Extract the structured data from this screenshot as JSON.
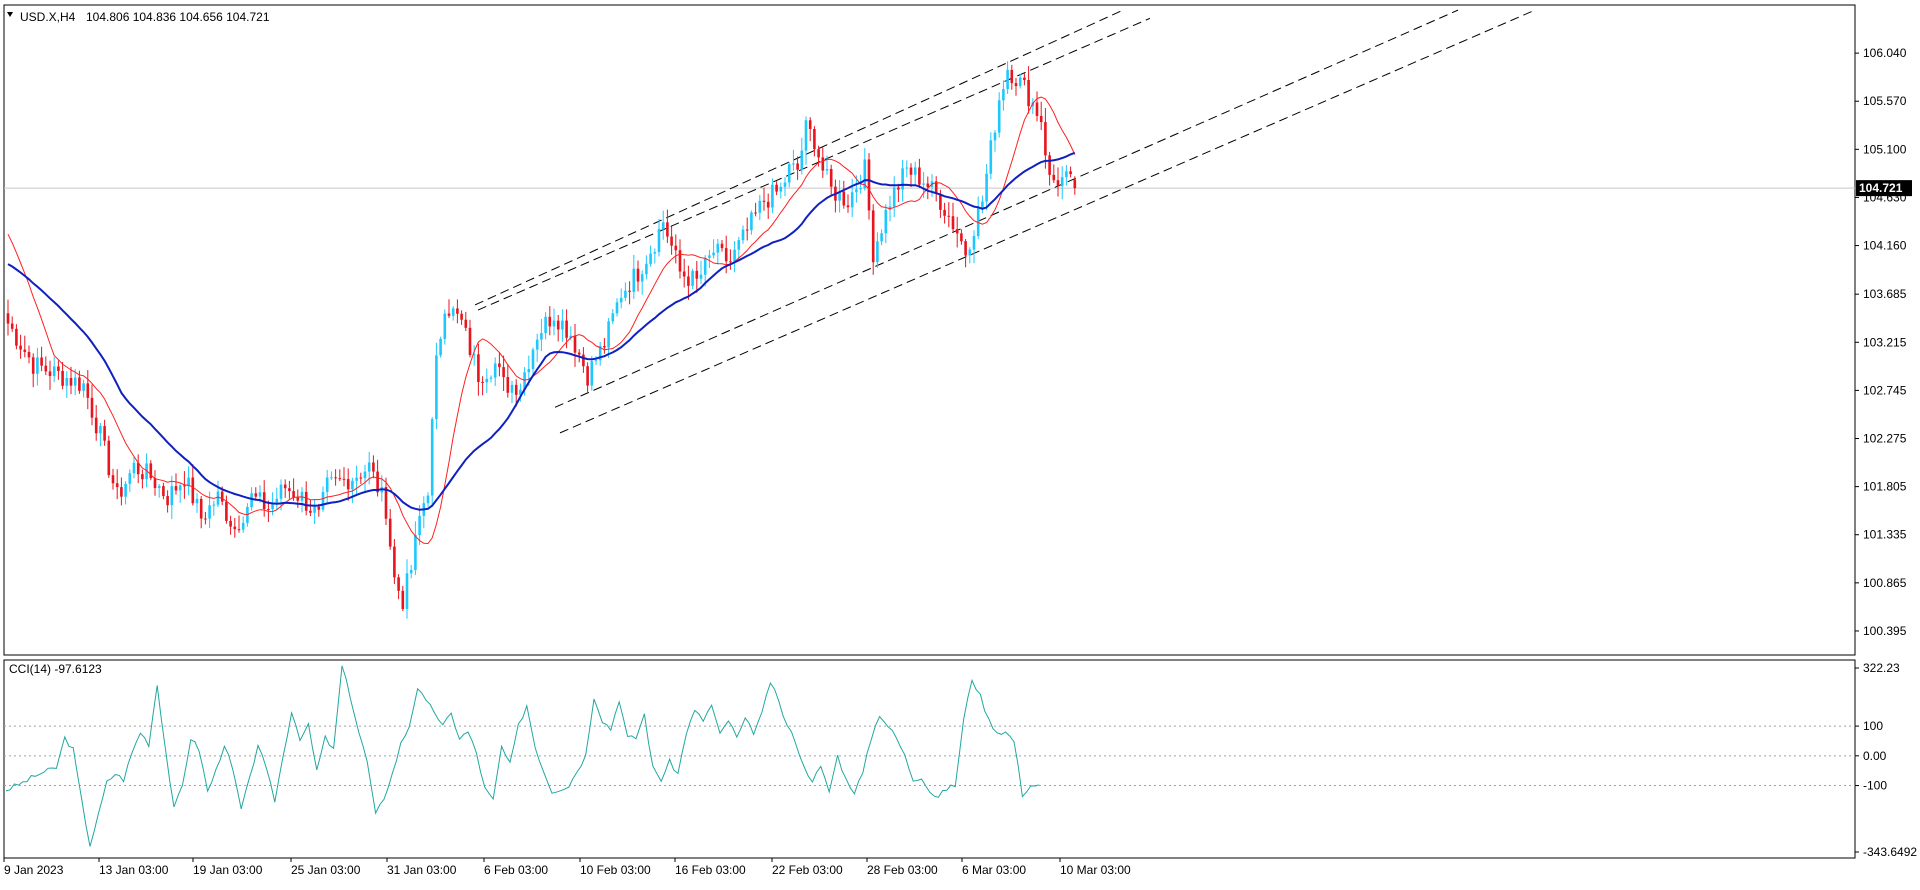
{
  "header": {
    "symbol": "USD.X,H4",
    "ohlc": "104.806 104.836 104.656 104.721"
  },
  "indicator": {
    "label": "CCI(14) -97.6123"
  },
  "colors": {
    "bull": "#1ec8ff",
    "bear": "#e8141e",
    "ma_fast": "#ff2020",
    "ma_slow": "#1020c0",
    "cci": "#20a8a0",
    "channel": "#000000",
    "price_tag_bg": "#000000",
    "grid_line": "#c8c8c8"
  },
  "chart_data": [
    {
      "type": "candlestick",
      "symbol": "USD.X",
      "timeframe": "H4",
      "ylim": [
        100.16,
        106.51
      ],
      "y_ticks": [
        "106.040",
        "105.570",
        "105.100",
        "104.630",
        "104.160",
        "103.685",
        "103.215",
        "102.745",
        "102.275",
        "101.805",
        "101.335",
        "100.865",
        "100.395"
      ],
      "x_ticks": [
        "9 Jan 2023",
        "13 Jan 03:00",
        "19 Jan 03:00",
        "25 Jan 03:00",
        "31 Jan 03:00",
        "6 Feb 03:00",
        "10 Feb 03:00",
        "16 Feb 03:00",
        "22 Feb 03:00",
        "28 Feb 03:00",
        "6 Mar 03:00",
        "10 Mar 03:00"
      ],
      "current_price": "104.721",
      "price_anchors": [
        [
          0,
          103.4
        ],
        [
          6,
          103.0
        ],
        [
          12,
          102.9
        ],
        [
          18,
          102.8
        ],
        [
          22,
          102.3
        ],
        [
          26,
          101.7
        ],
        [
          30,
          102.0
        ],
        [
          34,
          101.9
        ],
        [
          38,
          101.7
        ],
        [
          42,
          101.9
        ],
        [
          46,
          101.5
        ],
        [
          50,
          101.7
        ],
        [
          54,
          101.4
        ],
        [
          58,
          101.7
        ],
        [
          62,
          101.6
        ],
        [
          66,
          101.8
        ],
        [
          70,
          101.7
        ],
        [
          74,
          101.5
        ],
        [
          76,
          101.8
        ],
        [
          82,
          101.9
        ],
        [
          86,
          102.0
        ],
        [
          90,
          101.6
        ],
        [
          92,
          100.9
        ],
        [
          94,
          100.7
        ],
        [
          96,
          101.0
        ],
        [
          98,
          101.5
        ],
        [
          100,
          101.8
        ],
        [
          102,
          103.0
        ],
        [
          104,
          103.6
        ],
        [
          106,
          103.5
        ],
        [
          108,
          103.4
        ],
        [
          112,
          102.9
        ],
        [
          116,
          103.0
        ],
        [
          118,
          102.8
        ],
        [
          122,
          102.8
        ],
        [
          126,
          103.3
        ],
        [
          130,
          103.5
        ],
        [
          134,
          103.3
        ],
        [
          138,
          102.9
        ],
        [
          142,
          103.2
        ],
        [
          146,
          103.7
        ],
        [
          150,
          103.9
        ],
        [
          154,
          104.2
        ],
        [
          156,
          104.4
        ],
        [
          160,
          103.9
        ],
        [
          164,
          103.8
        ],
        [
          168,
          104.1
        ],
        [
          172,
          104.0
        ],
        [
          176,
          104.3
        ],
        [
          180,
          104.6
        ],
        [
          184,
          104.7
        ],
        [
          186,
          104.9
        ],
        [
          188,
          104.9
        ],
        [
          190,
          105.3
        ],
        [
          192,
          105.2
        ],
        [
          194,
          104.9
        ],
        [
          196,
          104.7
        ],
        [
          200,
          104.6
        ],
        [
          204,
          104.9
        ],
        [
          206,
          104.1
        ],
        [
          210,
          104.6
        ],
        [
          214,
          104.9
        ],
        [
          218,
          104.8
        ],
        [
          222,
          104.6
        ],
        [
          226,
          104.3
        ],
        [
          228,
          104.1
        ],
        [
          232,
          104.6
        ],
        [
          236,
          105.6
        ],
        [
          238,
          105.9
        ],
        [
          242,
          105.7
        ],
        [
          246,
          105.4
        ],
        [
          248,
          104.8
        ],
        [
          252,
          104.8
        ],
        [
          254,
          104.72
        ]
      ],
      "sma_fast_start": 104.35,
      "sma_slow_start": 104.0,
      "channel_lines": [
        {
          "start": [
            "6 Feb 03:00",
            103.58
          ],
          "end": [
            "10 Mar 03:00",
            106.46
          ]
        },
        {
          "start": [
            "6 Feb 03:00",
            103.53
          ],
          "end": [
            "10 Mar 03:00",
            106.38
          ]
        },
        {
          "start": [
            "10 Feb 03:00",
            102.58
          ],
          "end": [
            "10 Mar 03:00",
            106.46
          ]
        },
        {
          "start": [
            "10 Feb 03:00",
            102.33
          ],
          "end": [
            "10 Mar 03:00",
            106.46
          ]
        }
      ]
    },
    {
      "type": "line",
      "name": "CCI(14)",
      "value": -97.6123,
      "ylim": [
        -343.6492,
        322.23
      ],
      "y_ticks": [
        "322.23",
        "100",
        "0.00",
        "-100",
        "-343.6492"
      ],
      "levels": [
        100,
        0,
        -100
      ],
      "anchors": [
        [
          0,
          -115
        ],
        [
          4,
          -90
        ],
        [
          8,
          -60
        ],
        [
          12,
          -40
        ],
        [
          14,
          60
        ],
        [
          16,
          20
        ],
        [
          18,
          -150
        ],
        [
          20,
          -300
        ],
        [
          22,
          -200
        ],
        [
          24,
          -90
        ],
        [
          26,
          -60
        ],
        [
          28,
          -80
        ],
        [
          30,
          10
        ],
        [
          32,
          80
        ],
        [
          34,
          40
        ],
        [
          36,
          240
        ],
        [
          38,
          20
        ],
        [
          40,
          -180
        ],
        [
          42,
          -100
        ],
        [
          44,
          60
        ],
        [
          46,
          20
        ],
        [
          48,
          -120
        ],
        [
          50,
          -50
        ],
        [
          52,
          40
        ],
        [
          54,
          -50
        ],
        [
          56,
          -180
        ],
        [
          58,
          -80
        ],
        [
          60,
          40
        ],
        [
          62,
          -50
        ],
        [
          64,
          -150
        ],
        [
          66,
          0
        ],
        [
          68,
          150
        ],
        [
          70,
          60
        ],
        [
          72,
          100
        ],
        [
          74,
          -50
        ],
        [
          76,
          60
        ],
        [
          78,
          20
        ],
        [
          80,
          300
        ],
        [
          82,
          200
        ],
        [
          84,
          80
        ],
        [
          86,
          -20
        ],
        [
          88,
          -200
        ],
        [
          90,
          -140
        ],
        [
          92,
          -60
        ],
        [
          94,
          40
        ],
        [
          96,
          100
        ],
        [
          98,
          230
        ],
        [
          100,
          180
        ],
        [
          102,
          150
        ],
        [
          104,
          100
        ],
        [
          106,
          140
        ],
        [
          108,
          60
        ],
        [
          110,
          80
        ],
        [
          112,
          10
        ],
        [
          114,
          -110
        ],
        [
          116,
          -150
        ],
        [
          118,
          30
        ],
        [
          120,
          -30
        ],
        [
          122,
          100
        ],
        [
          124,
          170
        ],
        [
          126,
          30
        ],
        [
          128,
          -50
        ],
        [
          130,
          -120
        ],
        [
          134,
          -100
        ],
        [
          138,
          0
        ],
        [
          140,
          200
        ],
        [
          142,
          120
        ],
        [
          144,
          90
        ],
        [
          146,
          190
        ],
        [
          148,
          60
        ],
        [
          150,
          60
        ],
        [
          152,
          140
        ],
        [
          154,
          -40
        ],
        [
          156,
          -80
        ],
        [
          158,
          -20
        ],
        [
          160,
          -60
        ],
        [
          162,
          80
        ],
        [
          164,
          150
        ],
        [
          166,
          120
        ],
        [
          168,
          170
        ],
        [
          170,
          70
        ],
        [
          172,
          120
        ],
        [
          174,
          60
        ],
        [
          176,
          120
        ],
        [
          178,
          80
        ],
        [
          180,
          140
        ],
        [
          182,
          250
        ],
        [
          184,
          180
        ],
        [
          186,
          100
        ],
        [
          188,
          50
        ],
        [
          190,
          -40
        ],
        [
          192,
          -80
        ],
        [
          194,
          -40
        ],
        [
          196,
          -120
        ],
        [
          198,
          0
        ],
        [
          200,
          -80
        ],
        [
          202,
          -120
        ],
        [
          204,
          -60
        ],
        [
          206,
          60
        ],
        [
          208,
          140
        ],
        [
          210,
          100
        ],
        [
          212,
          60
        ],
        [
          214,
          0
        ],
        [
          216,
          -80
        ],
        [
          218,
          -70
        ],
        [
          220,
          -120
        ],
        [
          222,
          -140
        ],
        [
          224,
          -110
        ],
        [
          226,
          -100
        ],
        [
          228,
          120
        ],
        [
          230,
          260
        ],
        [
          232,
          200
        ],
        [
          234,
          120
        ],
        [
          236,
          80
        ],
        [
          238,
          80
        ],
        [
          240,
          50
        ],
        [
          242,
          -130
        ],
        [
          244,
          -100
        ],
        [
          246,
          -97.6
        ]
      ]
    }
  ]
}
